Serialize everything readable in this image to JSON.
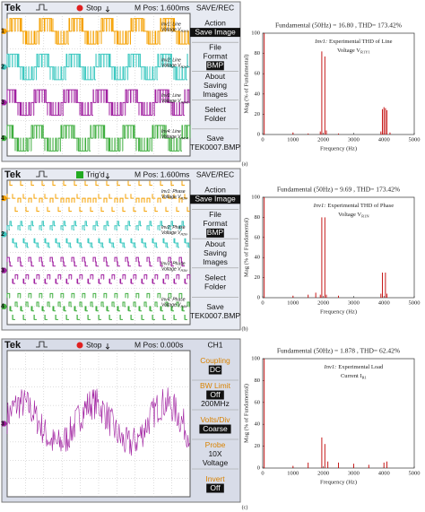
{
  "figure": {
    "captions": [
      "(a)",
      "(b)",
      "(c)"
    ],
    "scopes": [
      {
        "brand": "Tek",
        "status": "Stop",
        "position": "M Pos: 1.600ms",
        "menu_title": "SAVE/REC",
        "menu": [
          [
            {
              "text": "Action"
            },
            {
              "text": "Save Image",
              "boxed": true
            }
          ],
          [
            {
              "text": "File"
            },
            {
              "text": "Format"
            },
            {
              "text": "BMP",
              "boxed": true
            }
          ],
          [
            {
              "text": "About"
            },
            {
              "text": "Saving"
            },
            {
              "text": "Images"
            }
          ],
          [
            {
              "text": "Select"
            },
            {
              "text": "Folder"
            }
          ],
          [
            {
              "text": "Save"
            },
            {
              "text": "TEK0007.BMP"
            }
          ]
        ],
        "channels": [
          {
            "marker": "1",
            "lead": "Inv1:",
            "line1": "Line",
            "line2": "Voltage V",
            "sub": "R1Y1"
          },
          {
            "marker": "2",
            "lead": "Inv2:",
            "line1": "Line",
            "line2": "Voltage V",
            "sub": "R2Y2"
          },
          {
            "marker": "3",
            "lead": "Inv3:",
            "line1": "Line",
            "line2": "Voltage V",
            "sub": "R3Y3"
          },
          {
            "marker": "4",
            "lead": "Inv4:",
            "line1": "Line",
            "line2": "Voltage V",
            "sub": "R4Y4"
          }
        ]
      },
      {
        "brand": "Tek",
        "status": "Trig'd",
        "position": "M Pos: 1.600ms",
        "menu_title": "SAVE/REC",
        "menu": [
          [
            {
              "text": "Action"
            },
            {
              "text": "Save Image",
              "boxed": true
            }
          ],
          [
            {
              "text": "File"
            },
            {
              "text": "Format"
            },
            {
              "text": "BMP",
              "boxed": true
            }
          ],
          [
            {
              "text": "About"
            },
            {
              "text": "Saving"
            },
            {
              "text": "Images"
            }
          ],
          [
            {
              "text": "Select"
            },
            {
              "text": "Folder"
            }
          ],
          [
            {
              "text": "Save"
            },
            {
              "text": "TEK0007.BMP"
            }
          ]
        ],
        "channels": [
          {
            "marker": "1",
            "lead": "Inv1:",
            "line1": "Phase",
            "line2": "Voltage V",
            "sub": "R1N"
          },
          {
            "marker": "2",
            "lead": "Inv2:",
            "line1": "Phase",
            "line2": "Voltage V",
            "sub": "R2N"
          },
          {
            "marker": "3",
            "lead": "Inv3:",
            "line1": "Phase",
            "line2": "Voltage V",
            "sub": "R3N"
          },
          {
            "marker": "4",
            "lead": "Inv4:",
            "line1": "Phase",
            "line2": "Voltage V",
            "sub": "R4N"
          }
        ]
      },
      {
        "brand": "Tek",
        "status": "Stop",
        "position": "M Pos: 0.000s",
        "menu_title": "CH1",
        "menu": [
          [
            {
              "text": "Coupling"
            },
            {
              "text": "DC",
              "boxed": true
            }
          ],
          [
            {
              "text": "BW Limit"
            },
            {
              "text": "Off",
              "boxed": true
            },
            {
              "text": "200MHz"
            }
          ],
          [
            {
              "text": "Volts/Div"
            },
            {
              "text": "Coarse",
              "boxed": true
            }
          ],
          [
            {
              "text": "Probe"
            },
            {
              "text": "10X"
            },
            {
              "text": "Voltage"
            }
          ],
          [
            {
              "text": "Invert"
            },
            {
              "text": "Off",
              "boxed": true
            }
          ]
        ],
        "channels": [
          {
            "marker": "3"
          }
        ]
      }
    ]
  },
  "chart_data": [
    {
      "type": "bar",
      "title": "Fundamental (50Hz) = 16.80 , THD= 173.42%",
      "annotation": {
        "lead": "Inv1:",
        "line1": "Experimental THD of Line",
        "line2": "Voltage V",
        "sub": "R1Y1"
      },
      "x_label": "Frequency (Hz)",
      "y_label": "Mag (% of Fundamental)",
      "color": "#c00000",
      "x": [
        50,
        1000,
        1500,
        1900,
        1950,
        2050,
        2100,
        2500,
        3900,
        3950,
        4000,
        4050,
        4100,
        4200
      ],
      "values": [
        100,
        2,
        1,
        3,
        82,
        77,
        4,
        1,
        3,
        25,
        27,
        26,
        24,
        2
      ],
      "xlim": [
        0,
        5000
      ],
      "xticks": [
        0,
        1000,
        2000,
        3000,
        4000,
        5000
      ],
      "ylim": [
        0,
        100
      ],
      "yticks": [
        0,
        20,
        40,
        60,
        80,
        100
      ]
    },
    {
      "type": "bar",
      "title": "Fundamental (50Hz) = 9.69 , THD= 173.42%",
      "annotation": {
        "lead": "Inv1:",
        "line1": "Experimental THD of Phase",
        "line2": "Voltage V",
        "sub": "R1N"
      },
      "x_label": "Frequency (Hz)",
      "y_label": "Mag (% of Fundamental)",
      "color": "#c00000",
      "x": [
        50,
        1000,
        1500,
        1750,
        1900,
        1950,
        2050,
        2100,
        2500,
        3900,
        3950,
        4050,
        4100
      ],
      "values": [
        100,
        2,
        3,
        5,
        3,
        80,
        80,
        3,
        2,
        4,
        25,
        25,
        4
      ],
      "xlim": [
        0,
        5000
      ],
      "xticks": [
        0,
        1000,
        2000,
        3000,
        4000,
        5000
      ],
      "ylim": [
        0,
        100
      ],
      "yticks": [
        0,
        20,
        40,
        60,
        80,
        100
      ]
    },
    {
      "type": "bar",
      "title": "Fundamental (50Hz) = 1.878 , THD= 62.42%",
      "annotation": {
        "lead": "Inv1:",
        "line1": "Experimental Load",
        "line2": "Current I",
        "sub": "R1"
      },
      "x_label": "Frequency (Hz)",
      "y_label": "Mag (% of Fundamental)",
      "color": "#c00000",
      "x": [
        50,
        1000,
        1500,
        1950,
        2050,
        2150,
        2500,
        3000,
        3500,
        4000,
        4100
      ],
      "values": [
        100,
        2,
        5,
        28,
        22,
        6,
        5,
        4,
        3,
        5,
        6
      ],
      "xlim": [
        0,
        5000
      ],
      "xticks": [
        0,
        1000,
        2000,
        3000,
        4000,
        5000
      ],
      "ylim": [
        0,
        100
      ],
      "yticks": [
        0,
        20,
        40,
        60,
        80,
        100
      ]
    }
  ]
}
